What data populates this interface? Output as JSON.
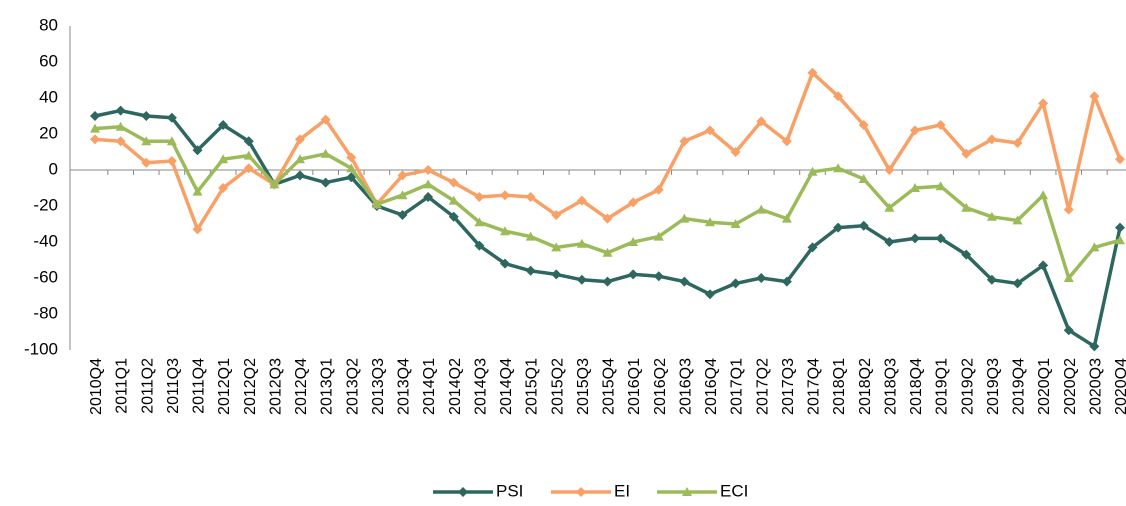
{
  "chart_data": {
    "type": "line",
    "categories": [
      "2010Q4",
      "2011Q1",
      "2011Q2",
      "2011Q3",
      "2011Q4",
      "2012Q1",
      "2012Q2",
      "2012Q3",
      "2012Q4",
      "2013Q1",
      "2013Q2",
      "2013Q3",
      "2013Q4",
      "2014Q1",
      "2014Q2",
      "2014Q3",
      "2014Q4",
      "2015Q1",
      "2015Q2",
      "2015Q3",
      "2015Q4",
      "2016Q1",
      "2016Q2",
      "2016Q3",
      "2016Q4",
      "2017Q1",
      "2017Q2",
      "2017Q3",
      "2017Q4",
      "2018Q1",
      "2018Q2",
      "2018Q3",
      "2018Q4",
      "2019Q1",
      "2019Q2",
      "2019Q3",
      "2019Q4",
      "2020Q1",
      "2020Q2",
      "2020Q3",
      "2020Q4"
    ],
    "series": [
      {
        "name": "PSI",
        "color": "#2e6660",
        "marker": "diamond",
        "values": [
          30,
          33,
          30,
          29,
          11,
          25,
          16,
          -8,
          -3,
          -7,
          -4,
          -20,
          -25,
          -15,
          -26,
          -42,
          -52,
          -56,
          -58,
          -61,
          -62,
          -58,
          -59,
          -62,
          -69,
          -63,
          -60,
          -62,
          -43,
          -32,
          -31,
          -40,
          -38,
          -38,
          -47,
          -61,
          -63,
          -53,
          -89,
          -98,
          -32
        ]
      },
      {
        "name": "EI",
        "color": "#f9a066",
        "marker": "diamond",
        "values": [
          17,
          16,
          4,
          5,
          -33,
          -10,
          1,
          -8,
          17,
          28,
          7,
          -19,
          -3,
          0,
          -7,
          -15,
          -14,
          -15,
          -25,
          -17,
          -27,
          -18,
          -11,
          16,
          22,
          10,
          27,
          16,
          54,
          41,
          25,
          0,
          22,
          25,
          9,
          17,
          15,
          37,
          -22,
          41,
          6
        ]
      },
      {
        "name": "ECI",
        "color": "#9bbb59",
        "marker": "triangle",
        "values": [
          23,
          24,
          16,
          16,
          -12,
          6,
          8,
          -8,
          6,
          9,
          1,
          -19,
          -14,
          -8,
          -17,
          -29,
          -34,
          -37,
          -43,
          -41,
          -46,
          -40,
          -37,
          -27,
          -29,
          -30,
          -22,
          -27,
          -1,
          1,
          -5,
          -21,
          -10,
          -9,
          -21,
          -26,
          -28,
          -14,
          -60,
          -43,
          -39
        ]
      }
    ],
    "ylim": [
      -100,
      80
    ],
    "yticks": [
      -100,
      -80,
      -60,
      -40,
      -20,
      0,
      20,
      40,
      60,
      80
    ],
    "grid": false,
    "legend": "bottom"
  }
}
